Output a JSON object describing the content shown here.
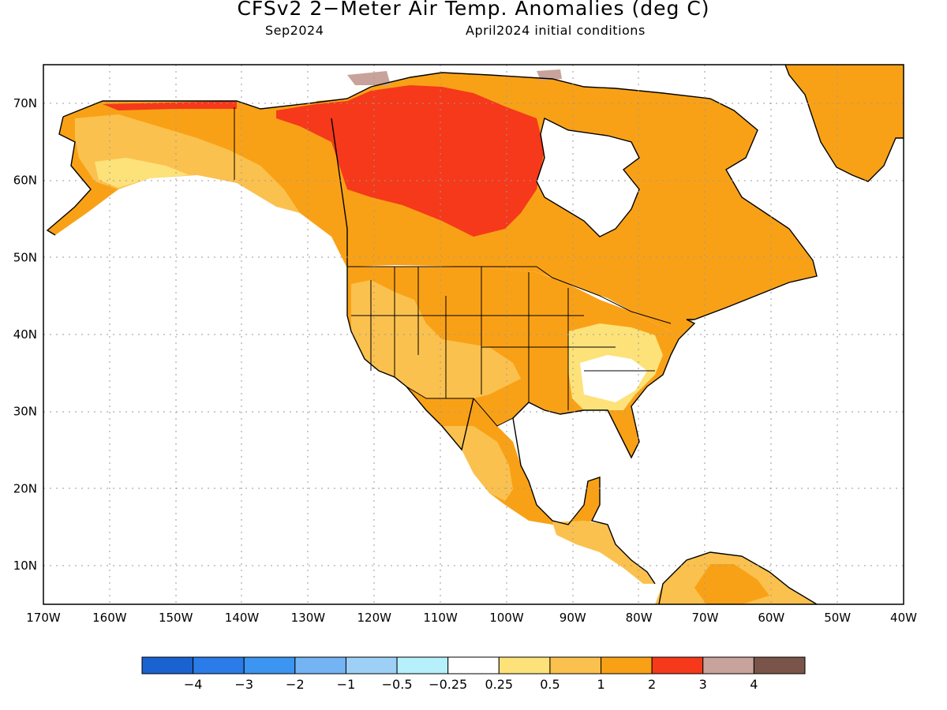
{
  "header": {
    "title": "CFSv2 2−Meter Air Temp. Anomalies (deg C)",
    "valid_month": "Sep2024",
    "init_conditions": "April2024 initial conditions"
  },
  "axes": {
    "lat_labels": [
      "70N",
      "60N",
      "50N",
      "40N",
      "30N",
      "20N",
      "10N"
    ],
    "lat_values": [
      70,
      60,
      50,
      40,
      30,
      20,
      10
    ],
    "lon_labels": [
      "170W",
      "160W",
      "150W",
      "140W",
      "130W",
      "120W",
      "110W",
      "100W",
      "90W",
      "80W",
      "70W",
      "60W",
      "50W",
      "40W"
    ],
    "lon_values": [
      -170,
      -160,
      -150,
      -140,
      -130,
      -120,
      -110,
      -100,
      -90,
      -80,
      -70,
      -60,
      -50,
      -40
    ],
    "lon_range": [
      -170,
      -40
    ],
    "lat_range": [
      5,
      75
    ],
    "grid": "dotted"
  },
  "legend": {
    "labels": [
      "−4",
      "−3",
      "−2",
      "−1",
      "−0.5",
      "−0.25",
      "0.25",
      "0.5",
      "1",
      "2",
      "3",
      "4"
    ],
    "colors": [
      "#1a62d0",
      "#2b7be8",
      "#3c95f0",
      "#74b4f5",
      "#9ed0f7",
      "#b6f0fb",
      "#ffffff",
      "#fde27a",
      "#fbc14e",
      "#f9a116",
      "#f5391a",
      "#c8a39b",
      "#7b5449"
    ]
  },
  "map_colors": {
    "land_background": "#f9a116",
    "light_anomaly": "#fbc14e",
    "pale_anomaly": "#fde27a",
    "strong_anomaly": "#f5391a",
    "very_strong": "#c8a39b",
    "coast": "#000000"
  }
}
